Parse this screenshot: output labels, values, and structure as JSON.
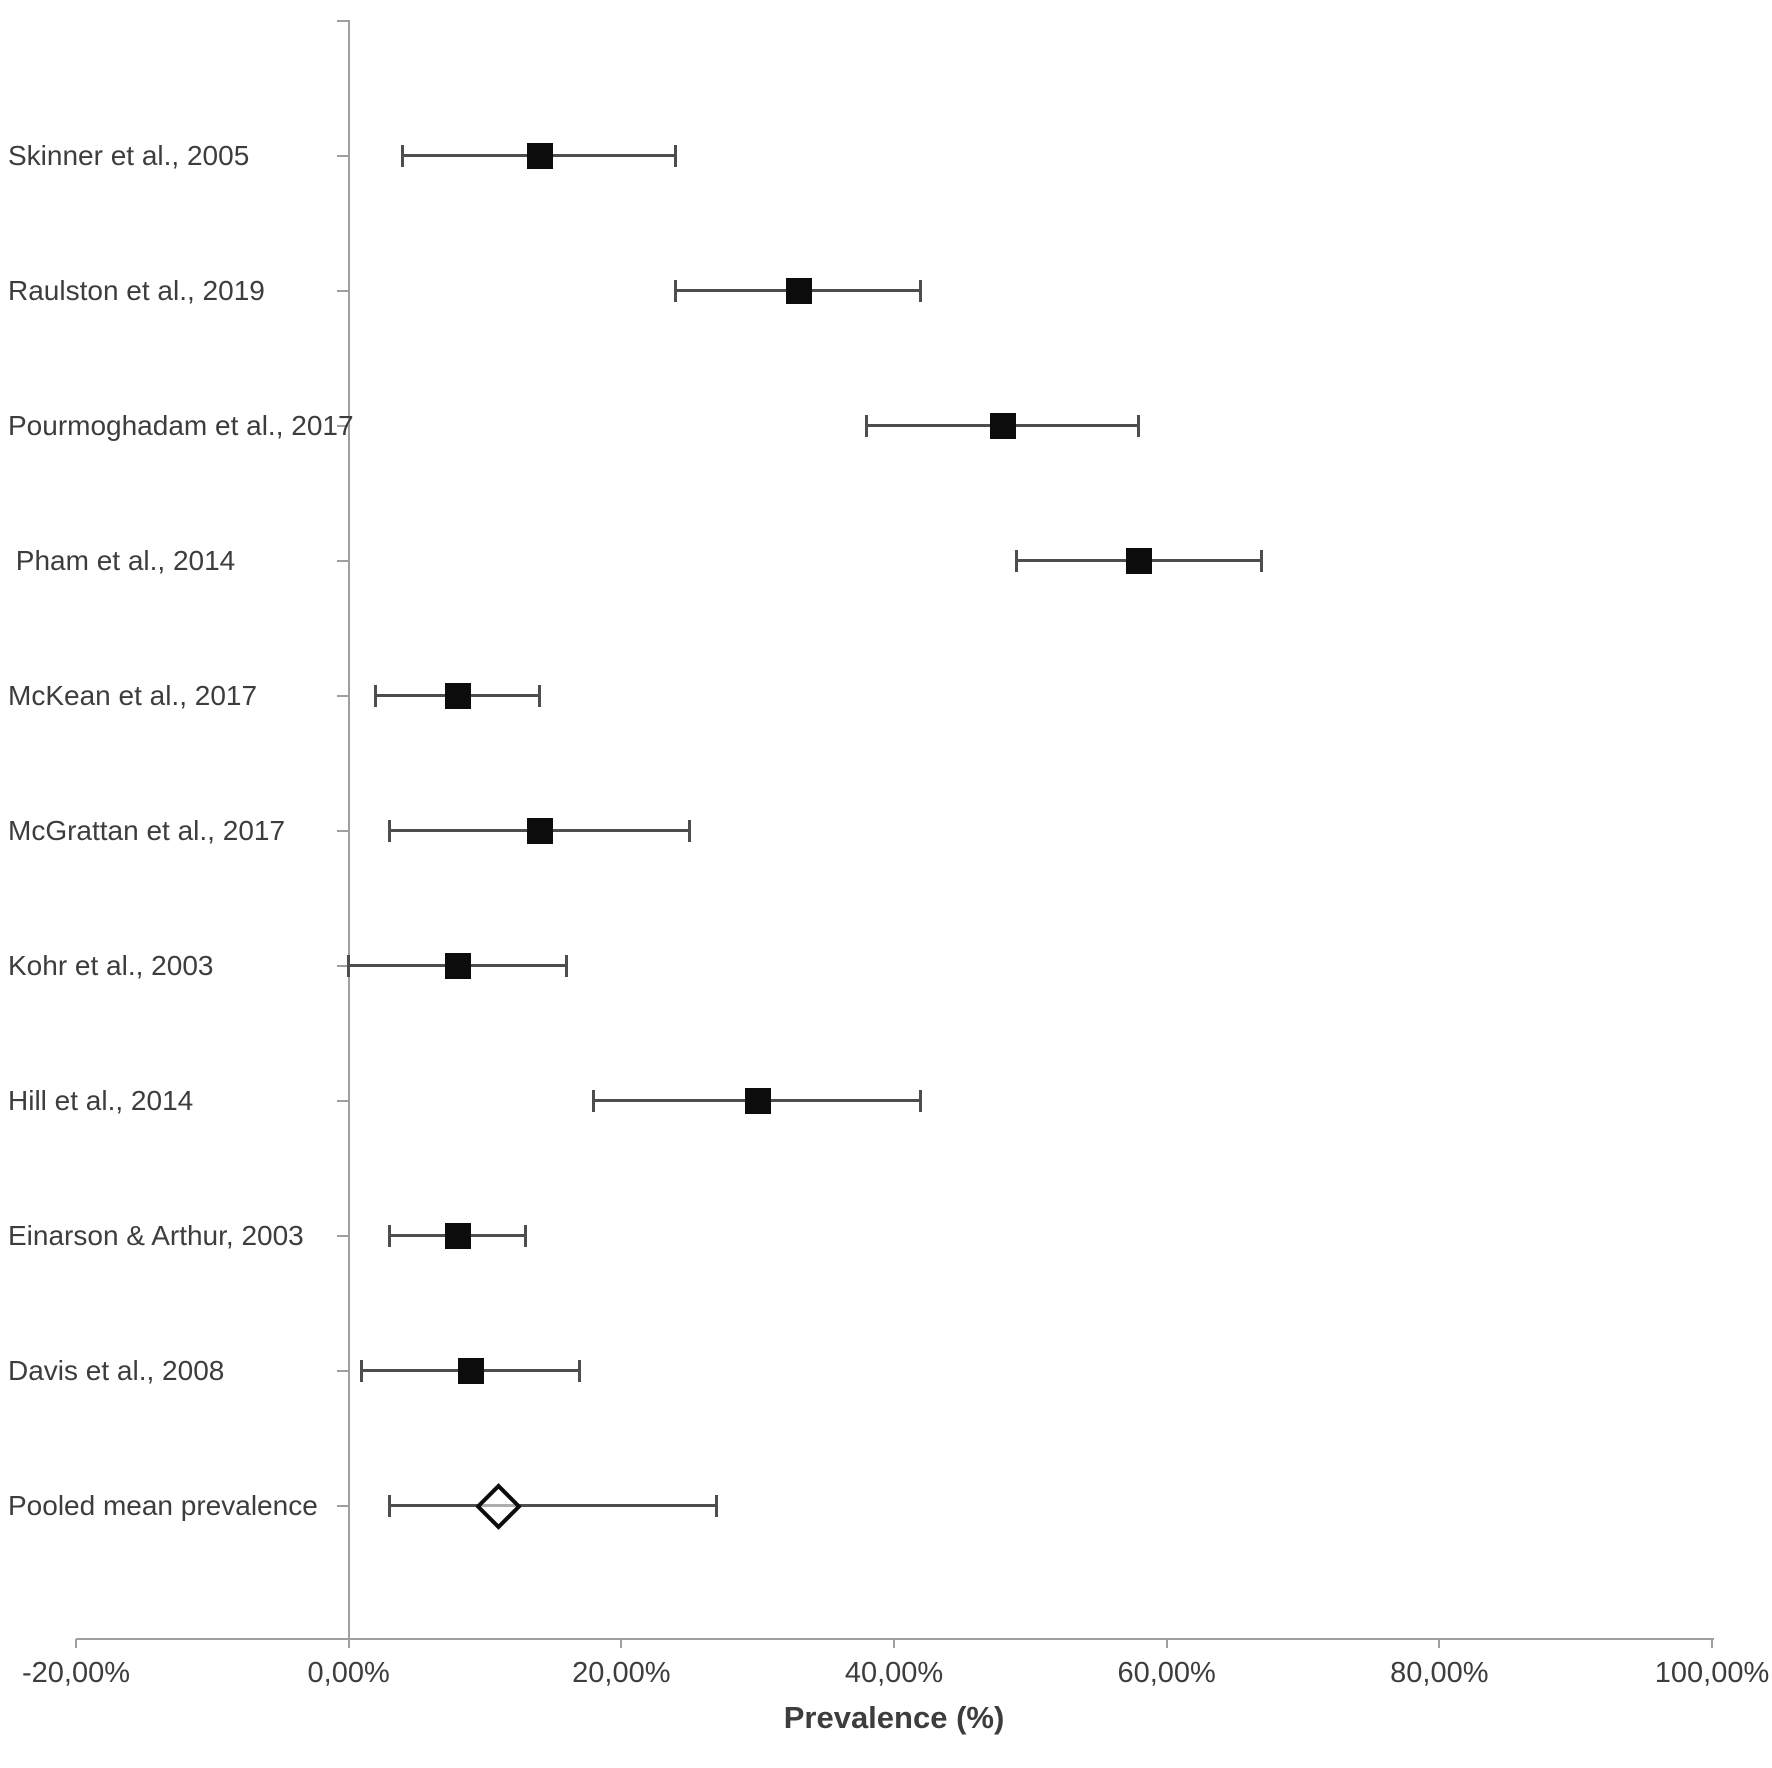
{
  "chart_data": {
    "type": "scatter",
    "variant": "forest_plot",
    "title": "",
    "xlabel": "Prevalence (%)",
    "ylabel": "",
    "grid": "off",
    "legend": "none",
    "xlim": [
      -20,
      100
    ],
    "x_tick_values": [
      -20,
      0,
      20,
      40,
      60,
      80,
      100
    ],
    "x_tick_labels": [
      "-20,00%",
      "0,00%",
      "20,00%",
      "40,00%",
      "60,00%",
      "80,00%",
      "100,00%"
    ],
    "rows": [
      {
        "label": "Skinner et al., 2005",
        "mean": 14,
        "ci_low": 4,
        "ci_high": 24,
        "marker": "square"
      },
      {
        "label": "Raulston et al., 2019",
        "mean": 33,
        "ci_low": 24,
        "ci_high": 42,
        "marker": "square"
      },
      {
        "label": "Pourmoghadam et al., 2017",
        "mean": 48,
        "ci_low": 38,
        "ci_high": 58,
        "marker": "square"
      },
      {
        "label": " Pham et al., 2014",
        "mean": 58,
        "ci_low": 49,
        "ci_high": 67,
        "marker": "square"
      },
      {
        "label": "McKean et al., 2017",
        "mean": 8,
        "ci_low": 2,
        "ci_high": 14,
        "marker": "square"
      },
      {
        "label": "McGrattan et al., 2017",
        "mean": 14,
        "ci_low": 3,
        "ci_high": 25,
        "marker": "square"
      },
      {
        "label": "Kohr et al., 2003",
        "mean": 8,
        "ci_low": 0,
        "ci_high": 16,
        "marker": "square"
      },
      {
        "label": "Hill et al., 2014",
        "mean": 30,
        "ci_low": 18,
        "ci_high": 42,
        "marker": "square"
      },
      {
        "label": "Einarson & Arthur, 2003",
        "mean": 8,
        "ci_low": 3,
        "ci_high": 13,
        "marker": "square"
      },
      {
        "label": "Davis et al., 2008",
        "mean": 9,
        "ci_low": 1,
        "ci_high": 17,
        "marker": "square"
      },
      {
        "label": "Pooled mean prevalence",
        "mean": 11,
        "ci_low": 3,
        "ci_high": 27,
        "marker": "diamond"
      }
    ],
    "colors": {
      "marker": "#0c0c0c",
      "ci_line": "#4d4d4d",
      "axis": "#9f9f9f",
      "text": "#3d3d3d"
    }
  }
}
